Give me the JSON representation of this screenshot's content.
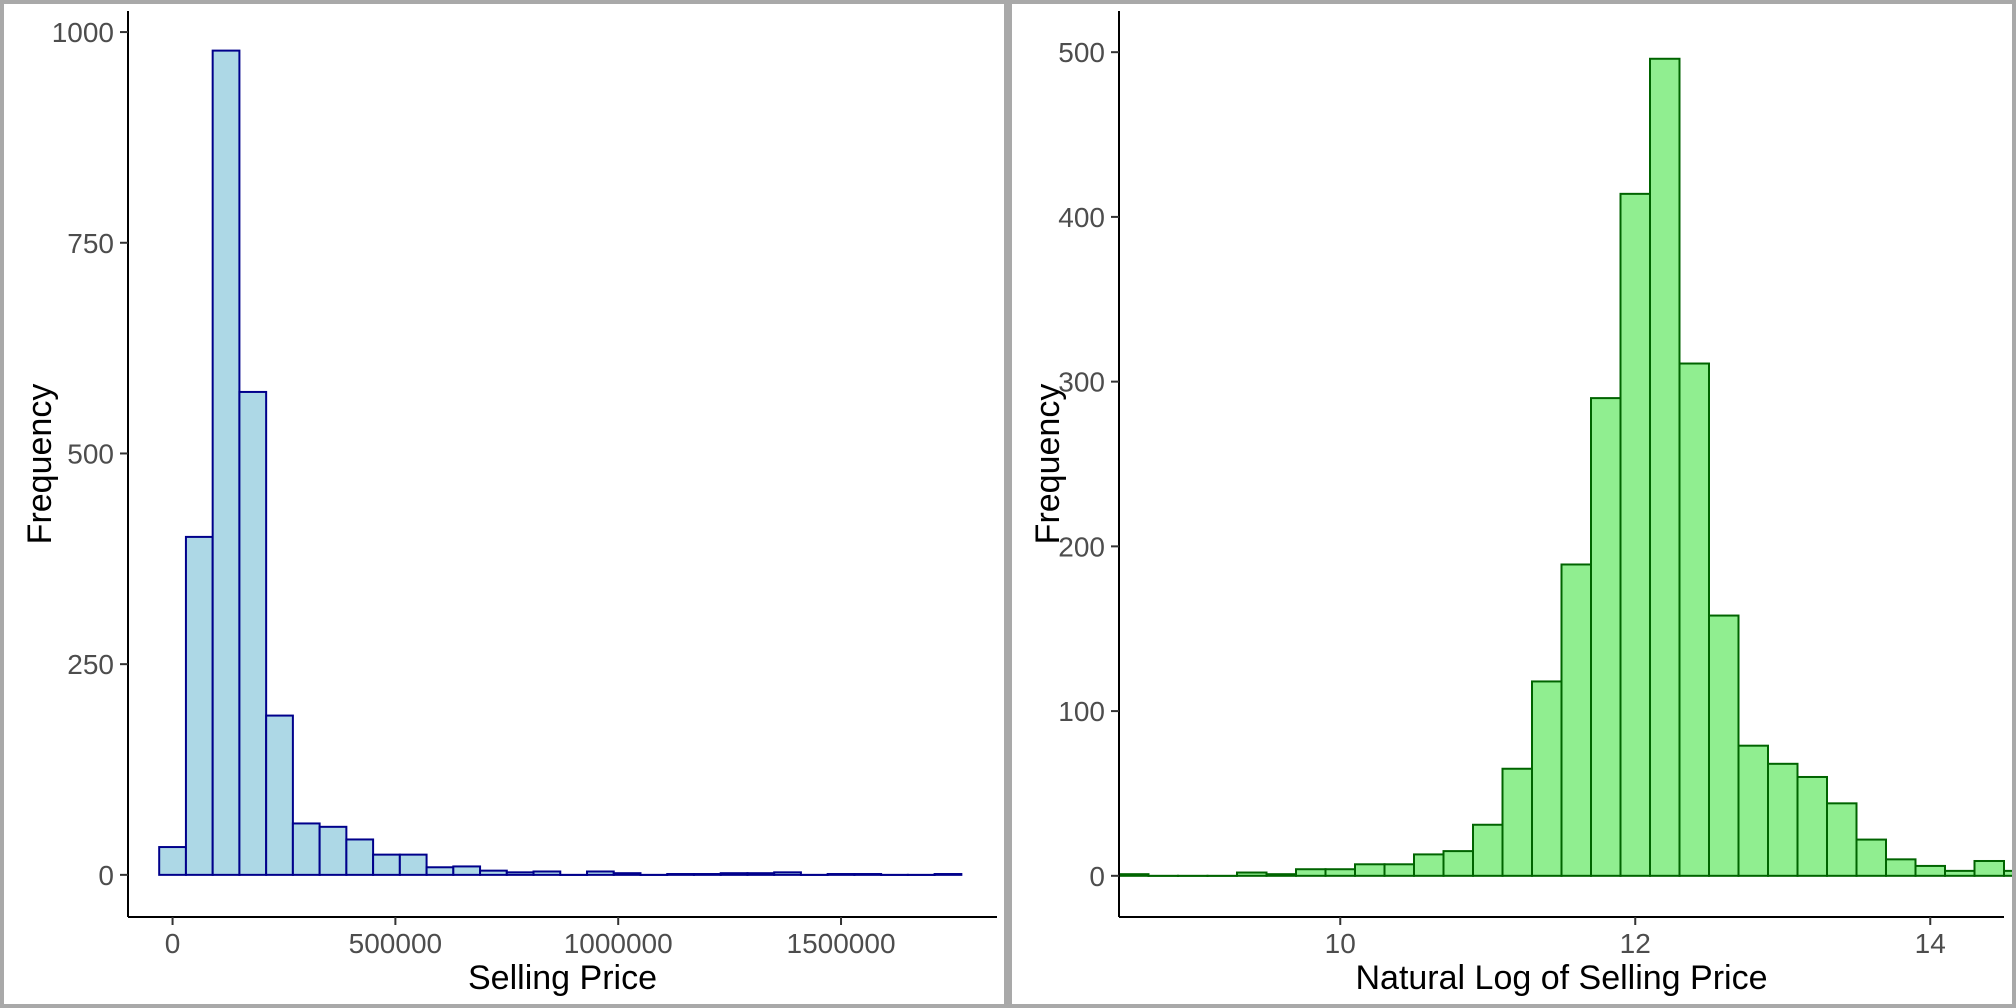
{
  "chart_data": [
    {
      "type": "bar",
      "subtype": "histogram",
      "xlabel": "Selling Price",
      "ylabel": "Frequency",
      "bin_width": 60000,
      "bins_start": -30000,
      "values": [
        33,
        401,
        978,
        573,
        189,
        61,
        57,
        42,
        24,
        24,
        9,
        10,
        5,
        3,
        4,
        0,
        4,
        2,
        0,
        1,
        1,
        2,
        2,
        3,
        0,
        1,
        1,
        0,
        0,
        1
      ],
      "xlim": [
        -100000,
        1850000
      ],
      "ylim": [
        -50,
        1025
      ],
      "xticks": [
        0,
        500000,
        1000000,
        1500000
      ],
      "xtick_labels": [
        "0",
        "500000",
        "1000000",
        "1500000"
      ],
      "yticks": [
        0,
        250,
        500,
        750,
        1000
      ],
      "ytick_labels": [
        "0",
        "250",
        "500",
        "750",
        "1000"
      ],
      "fill": "#add8e6",
      "stroke": "#00008b"
    },
    {
      "type": "bar",
      "subtype": "histogram",
      "xlabel": "Natural Log of Selling Price",
      "ylabel": "Frequency",
      "bin_width": 0.2,
      "bins_start": 8.5,
      "values": [
        1,
        0,
        0,
        0,
        2,
        1,
        4,
        4,
        7,
        7,
        13,
        15,
        31,
        65,
        118,
        189,
        290,
        414,
        496,
        311,
        158,
        79,
        68,
        60,
        44,
        22,
        10,
        6,
        3,
        9,
        3
      ],
      "xlim": [
        8.5,
        14.5
      ],
      "ylim": [
        -25,
        525
      ],
      "xticks": [
        10,
        12,
        14
      ],
      "xtick_labels": [
        "10",
        "12",
        "14"
      ],
      "yticks": [
        0,
        100,
        200,
        300,
        400,
        500
      ],
      "ytick_labels": [
        "0",
        "100",
        "200",
        "300",
        "400",
        "500"
      ],
      "fill": "#90ee90",
      "stroke": "#006400"
    }
  ]
}
